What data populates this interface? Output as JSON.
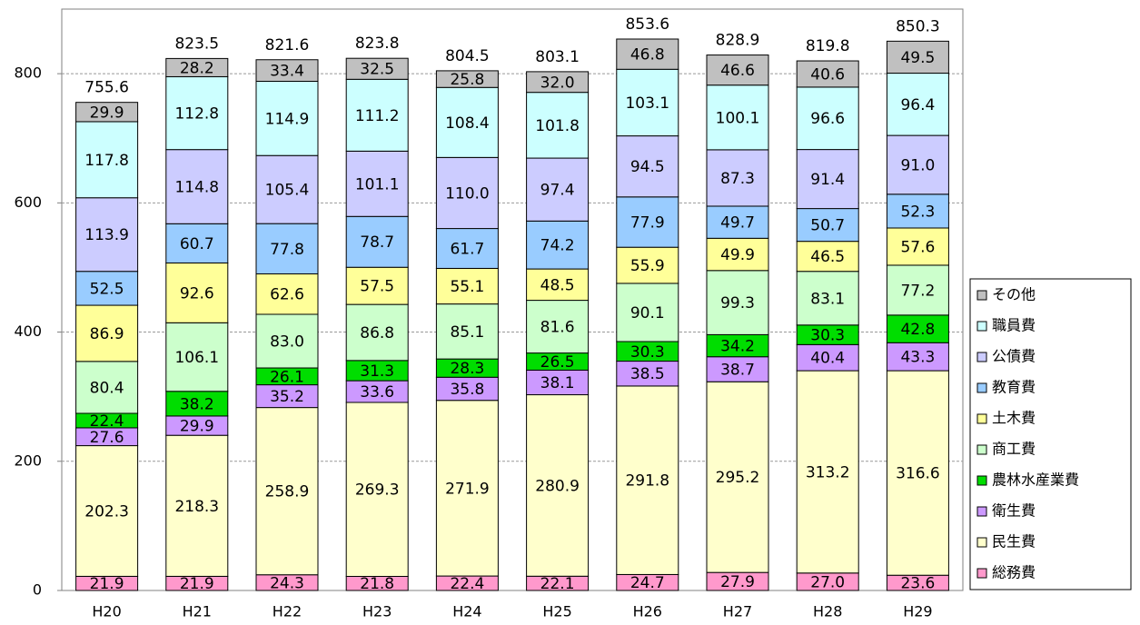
{
  "chart_data": {
    "type": "stacked_bar",
    "categories": [
      "H20",
      "H21",
      "H22",
      "H23",
      "H24",
      "H25",
      "H26",
      "H27",
      "H28",
      "H29"
    ],
    "series": [
      {
        "name": "総務費",
        "color": "#ff99cc",
        "values": [
          21.9,
          21.9,
          24.3,
          21.8,
          22.4,
          22.1,
          24.7,
          27.9,
          27.0,
          23.6
        ],
        "value_labels": [
          "21.9",
          "21.9",
          "24.3",
          "21.8",
          "22.4",
          "22.1",
          "24.7",
          "27.9",
          "27.0",
          "23.6"
        ]
      },
      {
        "name": "民生費",
        "color": "#ffffcc",
        "values": [
          202.3,
          218.3,
          258.9,
          269.3,
          271.9,
          280.9,
          291.8,
          295.2,
          313.2,
          316.6
        ],
        "value_labels": [
          "202.3",
          "218.3",
          "258.9",
          "269.3",
          "271.9",
          "280.9",
          "291.8",
          "295.2",
          "313.2",
          "316.6"
        ]
      },
      {
        "name": "衛生費",
        "color": "#cc99ff",
        "values": [
          27.6,
          29.9,
          35.2,
          33.6,
          35.8,
          38.1,
          38.5,
          38.7,
          40.4,
          43.3
        ],
        "value_labels": [
          "27.6",
          "29.9",
          "35.2",
          "33.6",
          "35.8",
          "38.1",
          "38.5",
          "38.7",
          "40.4",
          "43.3"
        ]
      },
      {
        "name": "農林水産業費",
        "color": "#00dd00",
        "values": [
          22.4,
          38.2,
          26.1,
          31.3,
          28.3,
          26.5,
          30.3,
          34.2,
          30.3,
          42.8
        ],
        "value_labels": [
          "22.4",
          "38.2",
          "26.1",
          "31.3",
          "28.3",
          "26.5",
          "30.3",
          "34.2",
          "30.3",
          "42.8"
        ]
      },
      {
        "name": "商工費",
        "color": "#ccffcc",
        "values": [
          80.4,
          106.1,
          83.0,
          86.8,
          85.1,
          81.6,
          90.1,
          99.3,
          83.1,
          77.2
        ],
        "value_labels": [
          "80.4",
          "106.1",
          "83.0",
          "86.8",
          "85.1",
          "81.6",
          "90.1",
          "99.3",
          "83.1",
          "77.2"
        ]
      },
      {
        "name": "土木費",
        "color": "#ffff99",
        "values": [
          86.9,
          92.6,
          62.6,
          57.5,
          55.1,
          48.5,
          55.9,
          49.9,
          46.5,
          57.6
        ],
        "value_labels": [
          "86.9",
          "92.6",
          "62.6",
          "57.5",
          "55.1",
          "48.5",
          "55.9",
          "49.9",
          "46.5",
          "57.6"
        ]
      },
      {
        "name": "教育費",
        "color": "#99ccff",
        "values": [
          52.5,
          60.7,
          77.8,
          78.7,
          61.7,
          74.2,
          77.9,
          49.7,
          50.7,
          52.3
        ],
        "value_labels": [
          "52.5",
          "60.7",
          "77.8",
          "78.7",
          "61.7",
          "74.2",
          "77.9",
          "49.7",
          "50.7",
          "52.3"
        ]
      },
      {
        "name": "公債費",
        "color": "#ccccff",
        "values": [
          113.9,
          114.8,
          105.4,
          101.1,
          110.0,
          97.4,
          94.5,
          87.3,
          91.4,
          91.0
        ],
        "value_labels": [
          "113.9",
          "114.8",
          "105.4",
          "101.1",
          "110.0",
          "97.4",
          "94.5",
          "87.3",
          "91.4",
          "91.0"
        ]
      },
      {
        "name": "職員費",
        "color": "#ccffff",
        "values": [
          117.8,
          112.8,
          114.9,
          111.2,
          108.4,
          101.8,
          103.1,
          100.1,
          96.6,
          96.4
        ],
        "value_labels": [
          "117.8",
          "112.8",
          "114.9",
          "111.2",
          "108.4",
          "101.8",
          "103.1",
          "100.1",
          "96.6",
          "96.4"
        ]
      },
      {
        "name": "その他",
        "color": "#c0c0c0",
        "values": [
          29.9,
          28.2,
          33.4,
          32.5,
          25.8,
          32.0,
          46.8,
          46.6,
          40.6,
          49.5
        ],
        "value_labels": [
          "29.9",
          "28.2",
          "33.4",
          "32.5",
          "25.8",
          "32.0",
          "46.8",
          "46.6",
          "40.6",
          "49.5"
        ]
      }
    ],
    "totals": [
      755.6,
      823.5,
      821.6,
      823.8,
      804.5,
      803.1,
      853.6,
      828.9,
      819.8,
      850.3
    ],
    "ylim": [
      0,
      900
    ],
    "yticks": [
      0,
      200,
      400,
      600,
      800
    ],
    "grid": true,
    "legend": "right"
  }
}
